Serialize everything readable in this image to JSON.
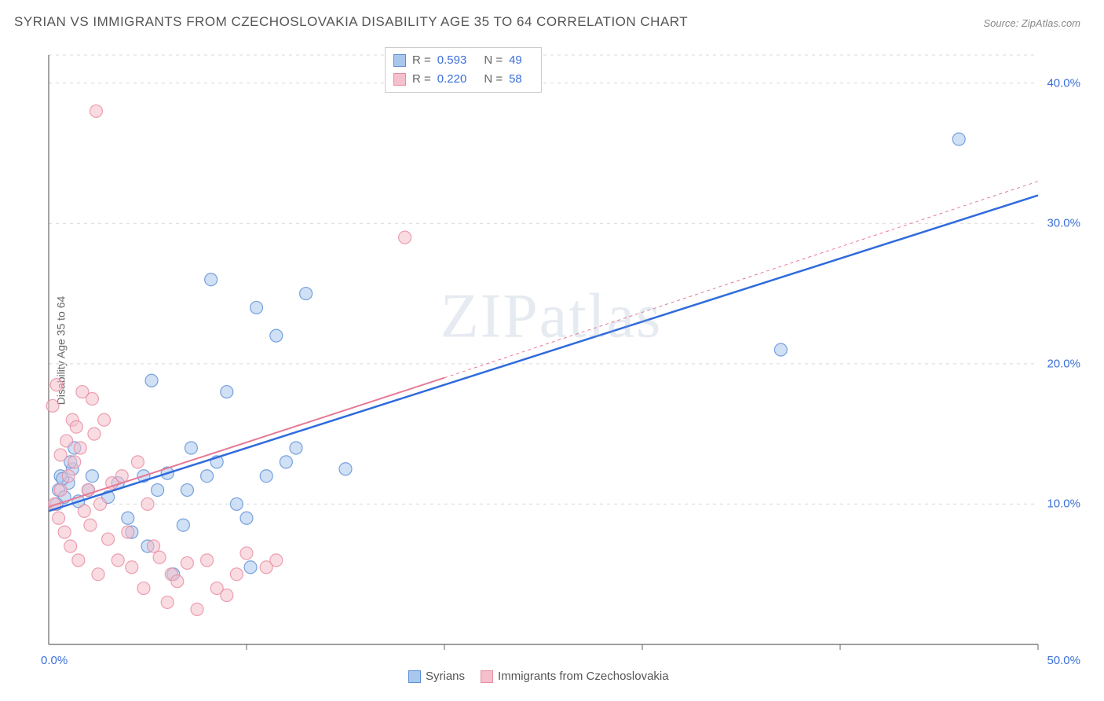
{
  "title": "SYRIAN VS IMMIGRANTS FROM CZECHOSLOVAKIA DISABILITY AGE 35 TO 64 CORRELATION CHART",
  "source": "Source: ZipAtlas.com",
  "ylabel": "Disability Age 35 to 64",
  "watermark": "ZIPatlas",
  "chart": {
    "type": "scatter",
    "xlim": [
      0,
      50
    ],
    "ylim": [
      0,
      42
    ],
    "x_tick_left": "0.0%",
    "x_tick_right": "50.0%",
    "y_ticks": [
      {
        "v": 10,
        "label": "10.0%"
      },
      {
        "v": 20,
        "label": "20.0%"
      },
      {
        "v": 30,
        "label": "30.0%"
      },
      {
        "v": 40,
        "label": "40.0%"
      }
    ],
    "x_grid_ticks": [
      10,
      20,
      30,
      40,
      50
    ],
    "grid_color": "#d8d8d8",
    "axis_color": "#666666",
    "background": "#ffffff",
    "marker_radius": 8,
    "marker_opacity": 0.55,
    "series": [
      {
        "name": "Syrians",
        "color_fill": "#a9c7ed",
        "color_stroke": "#5a8dd6",
        "trend": {
          "x1": 0,
          "y1": 9.5,
          "x2": 50,
          "y2": 32,
          "stroke": "#2f6bdc",
          "width": 2.5,
          "dash": "none"
        },
        "points": [
          [
            0.5,
            11
          ],
          [
            0.6,
            12
          ],
          [
            0.8,
            10.5
          ],
          [
            1,
            11.5
          ],
          [
            0.4,
            10
          ],
          [
            1.2,
            12.5
          ],
          [
            0.7,
            11.8
          ],
          [
            1.5,
            10.2
          ],
          [
            1.1,
            13
          ],
          [
            1.3,
            14
          ],
          [
            2,
            11
          ],
          [
            2.2,
            12
          ],
          [
            3,
            10.5
          ],
          [
            3.5,
            11.5
          ],
          [
            4,
            9
          ],
          [
            4.2,
            8
          ],
          [
            4.8,
            12
          ],
          [
            5,
            7
          ],
          [
            5.2,
            18.8
          ],
          [
            5.5,
            11
          ],
          [
            6,
            12.2
          ],
          [
            6.3,
            5
          ],
          [
            6.8,
            8.5
          ],
          [
            7,
            11
          ],
          [
            7.2,
            14
          ],
          [
            8,
            12
          ],
          [
            8.5,
            13
          ],
          [
            9,
            18
          ],
          [
            9.5,
            10
          ],
          [
            10,
            9
          ],
          [
            10.2,
            5.5
          ],
          [
            10.5,
            24
          ],
          [
            11,
            12
          ],
          [
            11.5,
            22
          ],
          [
            12,
            13
          ],
          [
            12.5,
            14
          ],
          [
            13,
            25
          ],
          [
            8.2,
            26
          ],
          [
            15,
            12.5
          ],
          [
            37,
            21
          ],
          [
            46,
            36
          ]
        ]
      },
      {
        "name": "Immigrants from Czechoslovakia",
        "color_fill": "#f4c0cb",
        "color_stroke": "#e88aa0",
        "trend": {
          "x1": 0,
          "y1": 9.8,
          "x2": 20,
          "y2": 19,
          "stroke": "#e67a96",
          "width": 2,
          "dash": "none"
        },
        "trend_ext": {
          "x1": 20,
          "y1": 19,
          "x2": 50,
          "y2": 33,
          "stroke": "#e67a96",
          "width": 1,
          "dash": "4,4"
        },
        "points": [
          [
            0.3,
            10
          ],
          [
            0.5,
            9
          ],
          [
            0.6,
            11
          ],
          [
            0.8,
            8
          ],
          [
            1,
            12
          ],
          [
            1.1,
            7
          ],
          [
            1.3,
            13
          ],
          [
            1.5,
            6
          ],
          [
            1.6,
            14
          ],
          [
            1.8,
            9.5
          ],
          [
            2,
            11
          ],
          [
            2.1,
            8.5
          ],
          [
            2.3,
            15
          ],
          [
            2.5,
            5
          ],
          [
            2.6,
            10
          ],
          [
            2.8,
            16
          ],
          [
            3,
            7.5
          ],
          [
            3.2,
            11.5
          ],
          [
            2.4,
            38
          ],
          [
            3.5,
            6
          ],
          [
            3.7,
            12
          ],
          [
            4,
            8
          ],
          [
            4.2,
            5.5
          ],
          [
            4.5,
            13
          ],
          [
            4.8,
            4
          ],
          [
            5,
            10
          ],
          [
            5.3,
            7
          ],
          [
            5.6,
            6.2
          ],
          [
            6,
            3
          ],
          [
            6.2,
            5
          ],
          [
            6.5,
            4.5
          ],
          [
            7,
            5.8
          ],
          [
            7.5,
            2.5
          ],
          [
            8,
            6
          ],
          [
            8.5,
            4
          ],
          [
            9,
            3.5
          ],
          [
            9.5,
            5
          ],
          [
            10,
            6.5
          ],
          [
            11,
            5.5
          ],
          [
            11.5,
            6
          ],
          [
            0.2,
            17
          ],
          [
            0.4,
            18.5
          ],
          [
            1.2,
            16
          ],
          [
            1.4,
            15.5
          ],
          [
            0.9,
            14.5
          ],
          [
            2.2,
            17.5
          ],
          [
            0.6,
            13.5
          ],
          [
            1.7,
            18
          ],
          [
            18,
            29
          ]
        ]
      }
    ]
  },
  "stats": [
    {
      "swatch_fill": "#a9c7ed",
      "swatch_stroke": "#5a8dd6",
      "r": "0.593",
      "n": "49"
    },
    {
      "swatch_fill": "#f4c0cb",
      "swatch_stroke": "#e88aa0",
      "r": "0.220",
      "n": "58"
    }
  ],
  "bottom_legend": [
    {
      "swatch_fill": "#a9c7ed",
      "swatch_stroke": "#5a8dd6",
      "label": "Syrians"
    },
    {
      "swatch_fill": "#f4c0cb",
      "swatch_stroke": "#e88aa0",
      "label": "Immigrants from Czechoslovakia"
    }
  ]
}
